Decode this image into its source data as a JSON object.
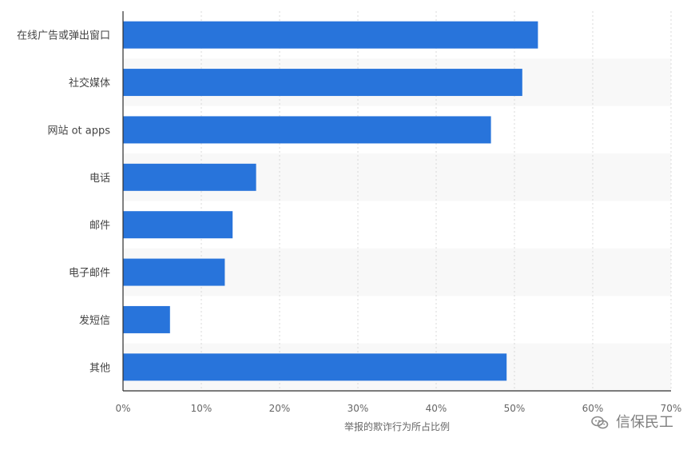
{
  "chart_data": {
    "type": "bar",
    "orientation": "horizontal",
    "categories": [
      "在线广告或弹出窗口",
      "社交媒体",
      "网站 ot apps",
      "电话",
      "邮件",
      "电子邮件",
      "发短信",
      "其他"
    ],
    "values": [
      53,
      51,
      47,
      17,
      14,
      13,
      6,
      49
    ],
    "xlim": [
      0,
      70
    ],
    "xticks": [
      "0%",
      "10%",
      "20%",
      "30%",
      "40%",
      "50%",
      "60%",
      "70%"
    ],
    "xlabel": "举报的欺诈行为所占比例",
    "ylabel": "",
    "grid": true,
    "colors": {
      "bar": "#2874db",
      "grid": "#d9d9d9",
      "axis": "#2d2d2d",
      "band": "#f8f8f8",
      "text": "#444444",
      "tick": "#666666",
      "watermark": "#7f7f7f"
    }
  },
  "watermark": {
    "text": "信保民工",
    "icon": "wechat-icon"
  }
}
